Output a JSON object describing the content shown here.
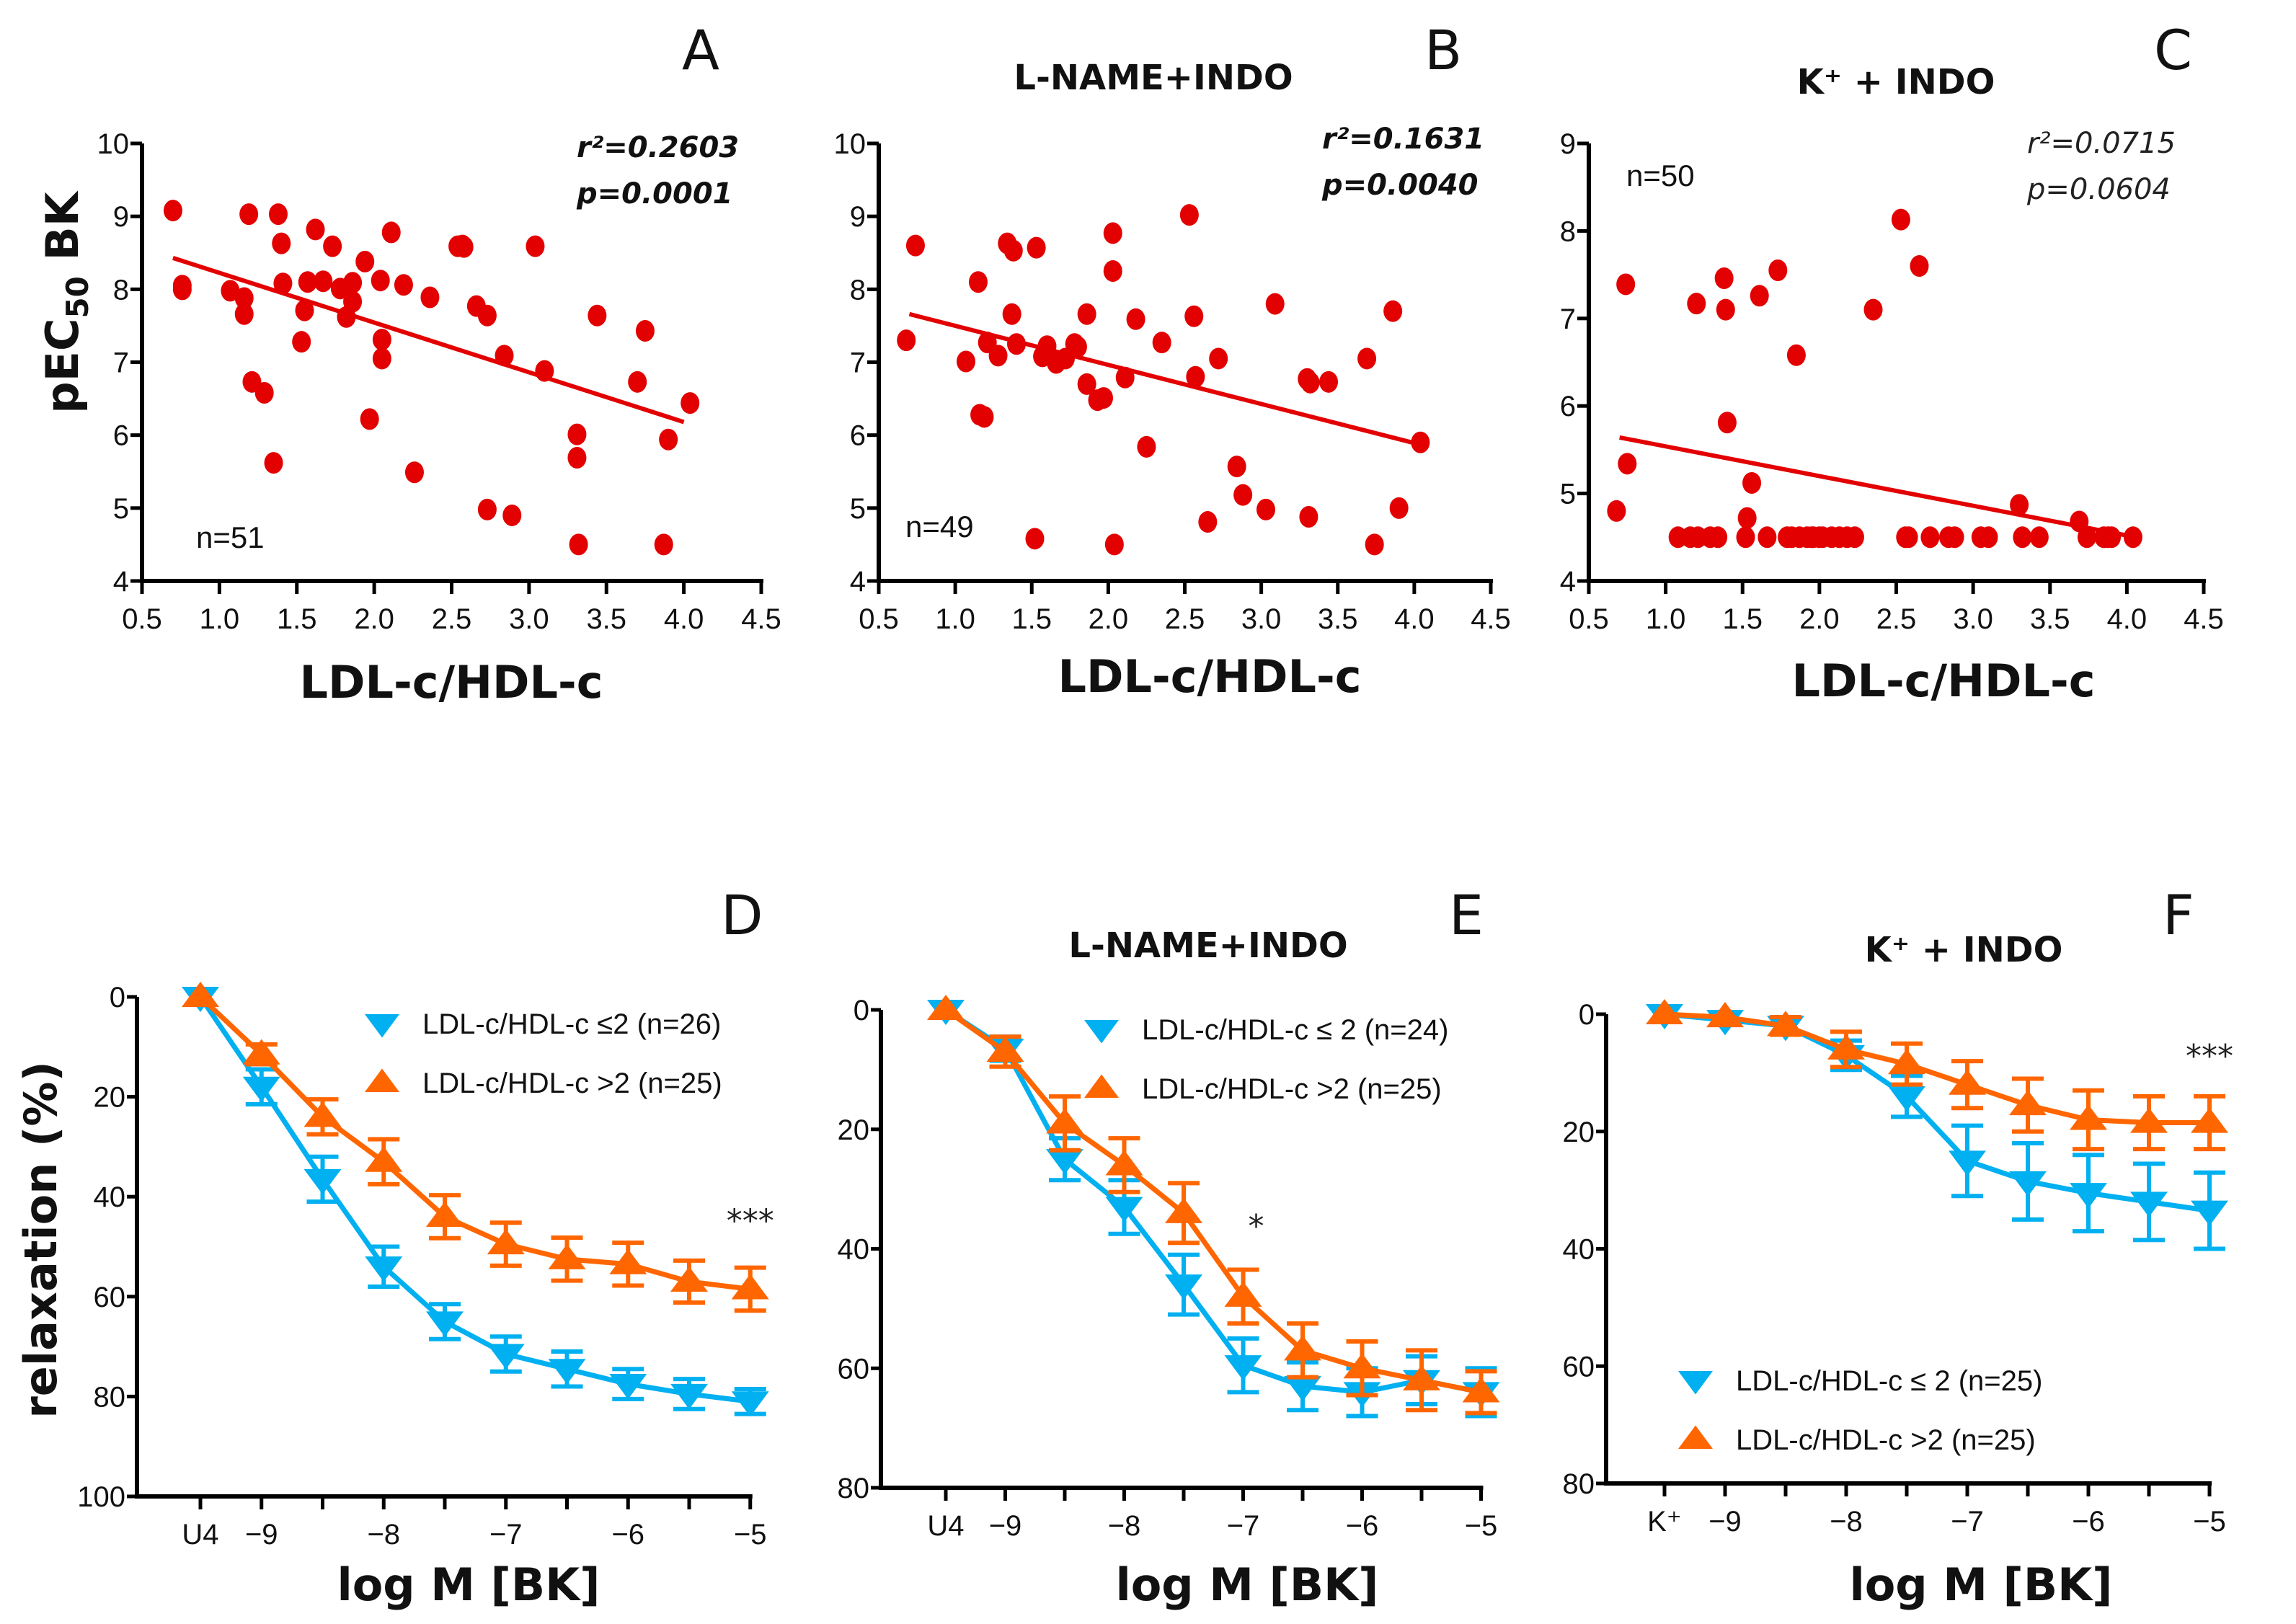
{
  "figure": {
    "colors": {
      "scatter_point": "#E30000",
      "regression_line": "#E30000",
      "series_low": "#00B0F0",
      "series_high": "#FF6600",
      "axis": "#000000"
    }
  },
  "chart_data": [
    {
      "id": "A",
      "type": "scatter",
      "panel_letter": "A",
      "title": "",
      "xlabel": "LDL-c/HDL-c",
      "ylabel": "pEC50 BK",
      "ylabel_main": "pEC",
      "ylabel_sub": "50",
      "ylabel_tail": " BK",
      "xlim": [
        0.5,
        4.5
      ],
      "ylim": [
        4,
        10
      ],
      "xticks": [
        0.5,
        1.0,
        1.5,
        2.0,
        2.5,
        3.0,
        3.5,
        4.0,
        4.5
      ],
      "xtick_labels": [
        "0.5",
        "1.0",
        "1.5",
        "2.0",
        "2.5",
        "3.0",
        "3.5",
        "4.0",
        "4.5"
      ],
      "yticks": [
        4,
        5,
        6,
        7,
        8,
        9,
        10
      ],
      "ytick_labels": [
        "4",
        "5",
        "6",
        "7",
        "8",
        "9",
        "10"
      ],
      "stats": {
        "r2": "r²=0.2603",
        "p": "p=0.0001",
        "bold": true,
        "placement": "top-right"
      },
      "n_label": "n=51",
      "n_placement": "bottom-left",
      "regression": {
        "x": [
          0.7,
          4.0
        ],
        "y": [
          8.43,
          6.18
        ]
      },
      "points": [
        [
          0.7,
          9.08
        ],
        [
          0.76,
          8.05
        ],
        [
          0.76,
          8.0
        ],
        [
          1.07,
          7.98
        ],
        [
          1.16,
          7.88
        ],
        [
          1.16,
          7.66
        ],
        [
          1.19,
          9.03
        ],
        [
          1.21,
          6.73
        ],
        [
          1.29,
          6.58
        ],
        [
          1.35,
          5.62
        ],
        [
          1.38,
          9.03
        ],
        [
          1.4,
          8.63
        ],
        [
          1.41,
          8.08
        ],
        [
          1.53,
          7.28
        ],
        [
          1.55,
          7.71
        ],
        [
          1.57,
          8.1
        ],
        [
          1.62,
          8.82
        ],
        [
          1.67,
          8.11
        ],
        [
          1.73,
          8.59
        ],
        [
          1.78,
          8.01
        ],
        [
          1.82,
          7.62
        ],
        [
          1.86,
          8.09
        ],
        [
          1.86,
          7.83
        ],
        [
          1.94,
          8.38
        ],
        [
          1.97,
          6.22
        ],
        [
          2.04,
          8.12
        ],
        [
          2.05,
          7.31
        ],
        [
          2.05,
          7.05
        ],
        [
          2.11,
          8.78
        ],
        [
          2.19,
          8.06
        ],
        [
          2.26,
          5.49
        ],
        [
          2.36,
          7.89
        ],
        [
          2.54,
          8.59
        ],
        [
          2.57,
          8.6
        ],
        [
          2.58,
          8.58
        ],
        [
          2.66,
          7.77
        ],
        [
          2.73,
          7.64
        ],
        [
          2.73,
          4.98
        ],
        [
          2.84,
          7.09
        ],
        [
          2.89,
          4.9
        ],
        [
          3.04,
          8.59
        ],
        [
          3.1,
          6.88
        ],
        [
          3.31,
          6.01
        ],
        [
          3.31,
          5.69
        ],
        [
          3.32,
          4.5
        ],
        [
          3.44,
          7.64
        ],
        [
          3.7,
          6.73
        ],
        [
          3.75,
          7.43
        ],
        [
          3.87,
          4.5
        ],
        [
          3.9,
          5.94
        ],
        [
          4.04,
          6.44
        ]
      ]
    },
    {
      "id": "B",
      "type": "scatter",
      "panel_letter": "B",
      "title": "L-NAME+INDO",
      "xlabel": "LDL-c/HDL-c",
      "ylabel": "",
      "xlim": [
        0.5,
        4.5
      ],
      "ylim": [
        4,
        10
      ],
      "xticks": [
        0.5,
        1.0,
        1.5,
        2.0,
        2.5,
        3.0,
        3.5,
        4.0,
        4.5
      ],
      "xtick_labels": [
        "0.5",
        "1.0",
        "1.5",
        "2.0",
        "2.5",
        "3.0",
        "3.5",
        "4.0",
        "4.5"
      ],
      "yticks": [
        4,
        5,
        6,
        7,
        8,
        9,
        10
      ],
      "ytick_labels": [
        "4",
        "5",
        "6",
        "7",
        "8",
        "9",
        "10"
      ],
      "stats": {
        "r2": "r²=0.1631",
        "p": "p=0.0040",
        "bold": true,
        "placement": "top-right"
      },
      "n_label": "n=49",
      "n_placement": "bottom-left",
      "regression": {
        "x": [
          0.7,
          4.04
        ],
        "y": [
          7.66,
          5.87
        ]
      },
      "points": [
        [
          0.68,
          7.3
        ],
        [
          0.74,
          8.6
        ],
        [
          1.07,
          7.01
        ],
        [
          1.15,
          8.1
        ],
        [
          1.16,
          6.28
        ],
        [
          1.19,
          6.25
        ],
        [
          1.21,
          7.27
        ],
        [
          1.28,
          7.09
        ],
        [
          1.34,
          8.63
        ],
        [
          1.37,
          7.66
        ],
        [
          1.38,
          8.53
        ],
        [
          1.4,
          7.25
        ],
        [
          1.52,
          4.58
        ],
        [
          1.53,
          8.57
        ],
        [
          1.57,
          7.08
        ],
        [
          1.6,
          7.22
        ],
        [
          1.66,
          6.99
        ],
        [
          1.72,
          7.05
        ],
        [
          1.78,
          7.25
        ],
        [
          1.8,
          7.21
        ],
        [
          1.86,
          7.66
        ],
        [
          1.86,
          6.7
        ],
        [
          1.93,
          6.48
        ],
        [
          1.97,
          6.51
        ],
        [
          2.03,
          8.77
        ],
        [
          2.03,
          8.25
        ],
        [
          2.04,
          4.5
        ],
        [
          2.11,
          6.79
        ],
        [
          2.18,
          7.59
        ],
        [
          2.25,
          5.84
        ],
        [
          2.35,
          7.27
        ],
        [
          2.53,
          9.02
        ],
        [
          2.56,
          7.63
        ],
        [
          2.57,
          6.8
        ],
        [
          2.65,
          4.81
        ],
        [
          2.72,
          7.05
        ],
        [
          2.84,
          5.57
        ],
        [
          2.88,
          5.18
        ],
        [
          3.03,
          4.98
        ],
        [
          3.09,
          7.8
        ],
        [
          3.3,
          6.77
        ],
        [
          3.31,
          4.88
        ],
        [
          3.32,
          6.72
        ],
        [
          3.44,
          6.73
        ],
        [
          3.69,
          7.05
        ],
        [
          3.74,
          4.5
        ],
        [
          3.86,
          7.7
        ],
        [
          3.9,
          5.0
        ],
        [
          4.04,
          5.9
        ]
      ]
    },
    {
      "id": "C",
      "type": "scatter",
      "panel_letter": "C",
      "title": "K⁺ + INDO",
      "xlabel": "LDL-c/HDL-c",
      "ylabel": "",
      "xlim": [
        0.5,
        4.5
      ],
      "ylim": [
        4,
        9
      ],
      "xticks": [
        0.5,
        1.0,
        1.5,
        2.0,
        2.5,
        3.0,
        3.5,
        4.0,
        4.5
      ],
      "xtick_labels": [
        "0.5",
        "1.0",
        "1.5",
        "2.0",
        "2.5",
        "3.0",
        "3.5",
        "4.0",
        "4.5"
      ],
      "yticks": [
        4,
        5,
        6,
        7,
        8,
        9
      ],
      "ytick_labels": [
        "4",
        "5",
        "6",
        "7",
        "8",
        "9"
      ],
      "stats": {
        "r2": "r²=0.0715",
        "p": "p=0.0604",
        "bold": false,
        "placement": "top-right"
      },
      "n_label": "n=50",
      "n_placement": "top-left",
      "regression": {
        "x": [
          0.7,
          4.0
        ],
        "y": [
          5.64,
          4.52
        ]
      },
      "points": [
        [
          0.68,
          4.8
        ],
        [
          0.74,
          7.39
        ],
        [
          0.75,
          5.34
        ],
        [
          1.08,
          4.5
        ],
        [
          1.16,
          4.5
        ],
        [
          1.2,
          7.17
        ],
        [
          1.21,
          4.5
        ],
        [
          1.29,
          4.5
        ],
        [
          1.34,
          4.5
        ],
        [
          1.38,
          7.46
        ],
        [
          1.39,
          7.1
        ],
        [
          1.4,
          5.81
        ],
        [
          1.52,
          4.5
        ],
        [
          1.53,
          4.72
        ],
        [
          1.56,
          5.12
        ],
        [
          1.61,
          7.26
        ],
        [
          1.66,
          4.5
        ],
        [
          1.73,
          7.55
        ],
        [
          1.79,
          4.5
        ],
        [
          1.82,
          4.5
        ],
        [
          1.85,
          6.58
        ],
        [
          1.87,
          4.5
        ],
        [
          1.92,
          4.5
        ],
        [
          1.96,
          4.5
        ],
        [
          2.02,
          4.5
        ],
        [
          2.08,
          4.5
        ],
        [
          2.13,
          4.5
        ],
        [
          2.18,
          4.5
        ],
        [
          2.23,
          4.5
        ],
        [
          2.35,
          7.1
        ],
        [
          2.53,
          8.13
        ],
        [
          2.56,
          4.5
        ],
        [
          2.58,
          4.5
        ],
        [
          2.65,
          7.6
        ],
        [
          2.72,
          4.5
        ],
        [
          2.84,
          4.5
        ],
        [
          2.88,
          4.5
        ],
        [
          3.05,
          4.5
        ],
        [
          3.1,
          4.5
        ],
        [
          3.3,
          4.87
        ],
        [
          3.32,
          4.5
        ],
        [
          3.43,
          4.5
        ],
        [
          3.69,
          4.68
        ],
        [
          3.74,
          4.5
        ],
        [
          3.85,
          4.5
        ],
        [
          3.88,
          4.5
        ],
        [
          3.9,
          4.5
        ],
        [
          4.04,
          4.5
        ],
        [
          1.95,
          4.5
        ],
        [
          2.0,
          4.5
        ]
      ]
    },
    {
      "id": "D",
      "type": "line",
      "panel_letter": "D",
      "title": "",
      "xlabel": "log M [BK]",
      "ylabel": "relaxation (%)",
      "x": [
        -9.5,
        -9,
        -8.5,
        -8,
        -7.5,
        -7,
        -6.5,
        -6,
        -5.5,
        -5
      ],
      "xlim": [
        -9.75,
        -5
      ],
      "ylim": [
        0,
        100
      ],
      "y_inverted": true,
      "xtick_values": [
        -9.5,
        -9,
        -8.5,
        -8,
        -7.5,
        -7,
        -6.5,
        -6,
        -5.5,
        -5
      ],
      "xtick_labels": [
        "U4",
        "−9",
        "",
        "−8",
        "",
        "−7",
        "",
        "−6",
        "",
        "−5"
      ],
      "yticks": [
        0,
        20,
        40,
        60,
        80,
        100
      ],
      "ytick_labels": [
        "0",
        "20",
        "40",
        "60",
        "80",
        "100"
      ],
      "legend_placement": "top-right",
      "significance": {
        "label": "***",
        "x": -5,
        "y": 47
      },
      "series": [
        {
          "name": "LDL-c/HDL-c ≤2 (n=26)",
          "marker": "triangle-down",
          "color": "#00B0F0",
          "values": [
            0,
            18,
            36.5,
            54,
            65,
            71.5,
            74.5,
            77.5,
            79.5,
            81
          ],
          "errors": [
            1,
            3.5,
            4.5,
            4,
            3.5,
            3.5,
            3.5,
            3,
            3,
            2.5
          ]
        },
        {
          "name": "LDL-c/HDL-c >2 (n=25)",
          "marker": "triangle-up",
          "color": "#FF6600",
          "values": [
            0,
            11.5,
            24,
            33,
            44,
            49.5,
            52.5,
            53.5,
            57,
            58.5
          ],
          "errors": [
            1,
            2,
            3.5,
            4.5,
            4.3,
            4.3,
            4.3,
            4.3,
            4.2,
            4.3
          ]
        }
      ]
    },
    {
      "id": "E",
      "type": "line",
      "panel_letter": "E",
      "title": "L-NAME+INDO",
      "xlabel": "log M [BK]",
      "ylabel": "",
      "x": [
        -9.5,
        -9,
        -8.5,
        -8,
        -7.5,
        -7,
        -6.5,
        -6,
        -5.5,
        -5
      ],
      "xlim": [
        -9.75,
        -5
      ],
      "ylim": [
        0,
        80
      ],
      "y_inverted": true,
      "xtick_values": [
        -9.5,
        -9,
        -8.5,
        -8,
        -7.5,
        -7,
        -6.5,
        -6,
        -5.5,
        -5
      ],
      "xtick_labels": [
        "U4",
        "−9",
        "",
        "−8",
        "",
        "−7",
        "",
        "−6",
        "",
        "−5"
      ],
      "yticks": [
        0,
        20,
        40,
        60,
        80
      ],
      "ytick_labels": [
        "0",
        "20",
        "40",
        "60",
        "80"
      ],
      "legend_placement": "top-right",
      "significance": {
        "label": "*",
        "x": -7,
        "y": 38
      },
      "series": [
        {
          "name": "LDL-c/HDL-c ≤ 2 (n=24)",
          "marker": "triangle-down",
          "color": "#00B0F0",
          "values": [
            0,
            6.5,
            25,
            33,
            46,
            59.5,
            63,
            64,
            62,
            64
          ],
          "errors": [
            1,
            2,
            3.5,
            4.5,
            5,
            4.5,
            4,
            4,
            4,
            4
          ]
        },
        {
          "name": "LDL-c/HDL-c >2 (n=25)",
          "marker": "triangle-up",
          "color": "#FF6600",
          "values": [
            0,
            7,
            19,
            26,
            34,
            48,
            57,
            60,
            62,
            64
          ],
          "errors": [
            1,
            2.5,
            4.5,
            4.5,
            5,
            4.5,
            4.5,
            4.5,
            5,
            3.5
          ]
        }
      ]
    },
    {
      "id": "F",
      "type": "line",
      "panel_letter": "F",
      "title": "K⁺ + INDO",
      "xlabel": "log M [BK]",
      "ylabel": "",
      "x": [
        -9.5,
        -9,
        -8.5,
        -8,
        -7.5,
        -7,
        -6.5,
        -6,
        -5.5,
        -5
      ],
      "xlim": [
        -9.75,
        -5
      ],
      "ylim": [
        0,
        80
      ],
      "y_inverted": true,
      "xtick_values": [
        -9.5,
        -9,
        -8.5,
        -8,
        -7.5,
        -7,
        -6.5,
        -6,
        -5.5,
        -5
      ],
      "xtick_labels": [
        "K⁺",
        "−9",
        "",
        "−8",
        "",
        "−7",
        "",
        "−6",
        "",
        "−5"
      ],
      "yticks": [
        0,
        20,
        40,
        60,
        80
      ],
      "ytick_labels": [
        "0",
        "20",
        "40",
        "60",
        "80"
      ],
      "legend_placement": "bottom-left",
      "significance": {
        "label": "***",
        "x": -5,
        "y": 9
      },
      "series": [
        {
          "name": "LDL-c/HDL-c ≤ 2 (n=25)",
          "marker": "triangle-down",
          "color": "#00B0F0",
          "values": [
            0,
            1,
            2,
            7,
            14,
            25,
            28.5,
            30.5,
            32,
            33.5
          ],
          "errors": [
            1,
            1,
            1.5,
            2.5,
            3.5,
            6,
            6.5,
            6.5,
            6.5,
            6.5
          ]
        },
        {
          "name": "LDL-c/HDL-c >2 (n=25)",
          "marker": "triangle-up",
          "color": "#FF6600",
          "values": [
            0,
            0.5,
            2,
            6,
            8.5,
            12,
            15.5,
            18,
            18.5,
            18.5
          ],
          "errors": [
            1,
            1,
            1.5,
            3,
            3.5,
            4,
            4.5,
            5,
            4.5,
            4.5
          ]
        }
      ]
    }
  ]
}
